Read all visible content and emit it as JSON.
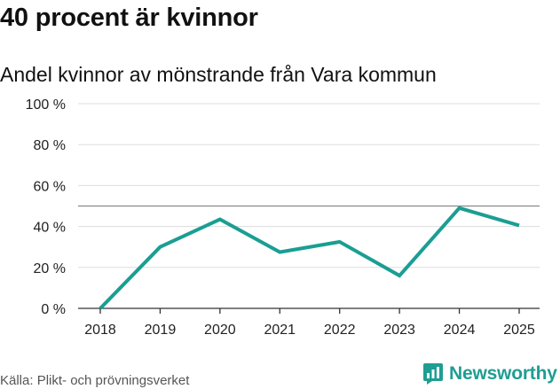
{
  "title": "40 procent är kvinnor",
  "subtitle": "Andel kvinnor av mönstrande från Vara kommun",
  "source": "Källa: Plikt- och prövningsverket",
  "brand": {
    "name": "Newsworthy",
    "icon": "newsworthy-logo-icon",
    "color": "#1e9e93"
  },
  "colors": {
    "line": "#1a9e93",
    "grid": "#dddddd",
    "reference": "#888888",
    "axis": "#333333"
  },
  "chart_data": {
    "type": "line",
    "title": "Andel kvinnor av mönstrande från Vara kommun",
    "xlabel": "",
    "ylabel": "",
    "x": [
      "2018",
      "2019",
      "2020",
      "2021",
      "2022",
      "2023",
      "2024",
      "2025"
    ],
    "series": [
      {
        "name": "Andel kvinnor",
        "values": [
          0,
          30,
          43.5,
          27.5,
          32.5,
          16,
          49,
          40.5
        ]
      }
    ],
    "reference_line": 50,
    "ylim": [
      0,
      100
    ],
    "yticks": [
      0,
      20,
      40,
      60,
      80,
      100
    ],
    "ytick_labels": [
      "0 %",
      "20 %",
      "40 %",
      "60 %",
      "80 %",
      "100 %"
    ],
    "grid": true
  }
}
